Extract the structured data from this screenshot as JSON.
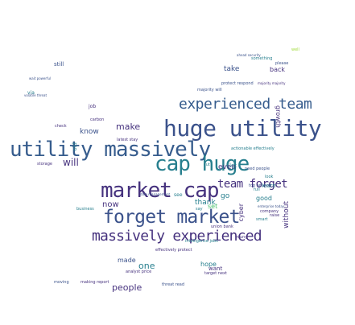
{
  "palette": {
    "dark_purple": "#46327e",
    "indigo": "#3b528b",
    "blue": "#365c8d",
    "teal": "#277f8e",
    "green": "#1fa187",
    "light_green": "#4ac16d",
    "lime": "#a0da39",
    "yellow": "#e6e419",
    "background": "#ffffff"
  },
  "words": {
    "huge_utility": "huge utility",
    "utility_massively": "utility massively",
    "experienced_team": "experienced team",
    "cap_huge": "cap huge",
    "market_cap": "market cap",
    "forget_market": "forget market",
    "massively_experienced": "massively experienced",
    "team_forget": "team forget",
    "will": "will",
    "make": "make",
    "now": "now",
    "people": "people",
    "one": "one",
    "know": "know",
    "thank": "thank",
    "even": "even",
    "go": "go",
    "take": "take",
    "made": "made",
    "hope": "hope",
    "want": "want",
    "without": "without",
    "growth": "growth",
    "back": "back",
    "still": "still",
    "good": "good",
    "protect_respond": "protect respond",
    "majority_majority": "majority majority",
    "majority_will": "majority will",
    "storage": "storage",
    "need_people": "need people",
    "top_analyst": "top analyst",
    "learn": "learn",
    "full": "full",
    "latest_stay": "latest stay",
    "carbon": "carbon",
    "business": "business",
    "young": "young",
    "threat_read": "threat read",
    "target_next": "target next",
    "moving": "moving",
    "making_report": "making report",
    "effectively_protect": "effectively protect",
    "intelligence_jobs": "intelligence jobs",
    "cyber": "cyber",
    "old": "old",
    "job": "job",
    "via": "via",
    "wait_powerful": "wait powerful",
    "data_management": "data management",
    "actionable_effectively": "actionable effectively",
    "ahead_security": "ahead security",
    "something": "something",
    "please": "please",
    "well": "well",
    "look": "look",
    "say": "say",
    "set": "set",
    "see": "see",
    "lot": "lot",
    "enterprise_today": "enterprise today",
    "company": "company",
    "raise": "raise",
    "smart": "smart",
    "check": "check",
    "volatile_threat": "volatile threat",
    "analyst_price": "analyst price",
    "union_bank": "union bank",
    "cut": "cut"
  }
}
